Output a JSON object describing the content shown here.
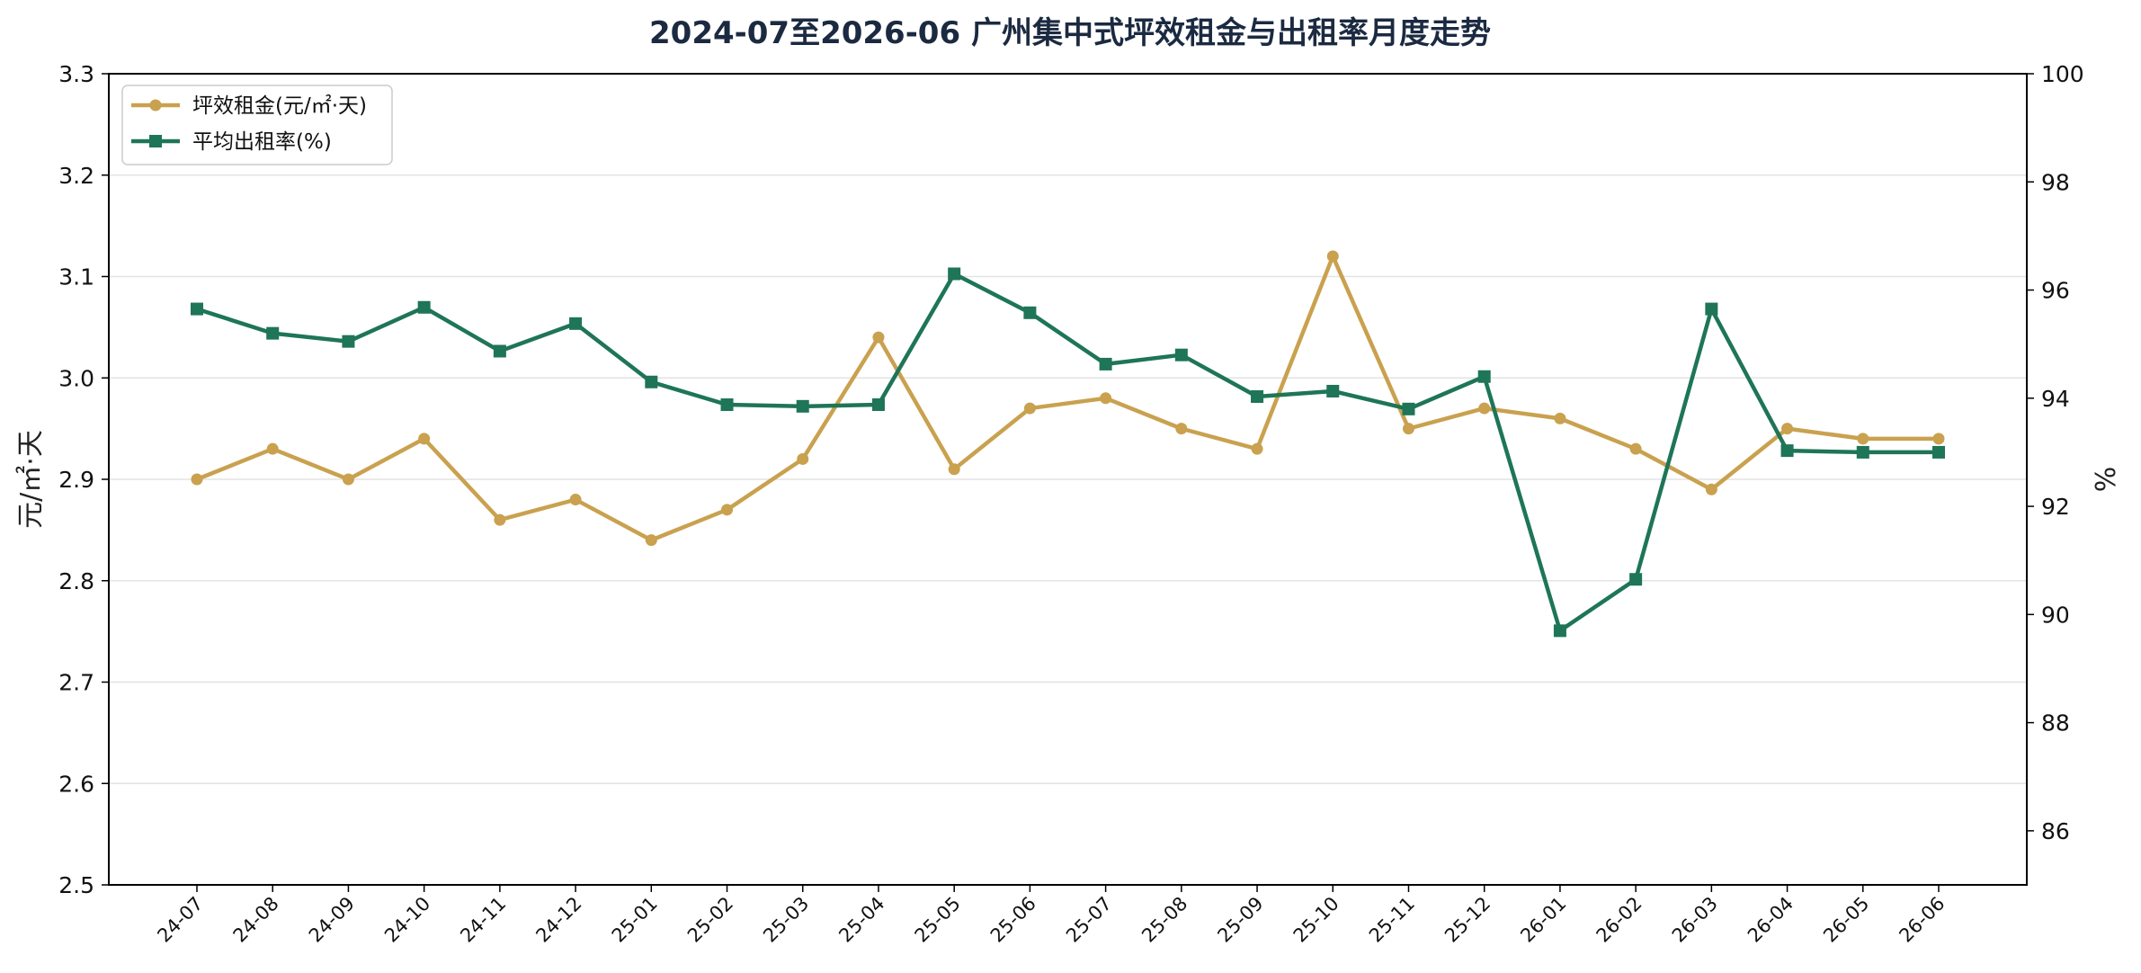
{
  "chart_data": {
    "type": "line",
    "title": "2024-07至2026-06 广州集中式坪效租金与出租率月度走势",
    "ylabel_left": "元/㎡·天",
    "ylabel_right": "%",
    "ylim_left": [
      2.5,
      3.3
    ],
    "ylim_right": [
      85,
      100
    ],
    "yticks_left": [
      "2.5",
      "2.6",
      "2.7",
      "2.8",
      "2.9",
      "3.0",
      "3.1",
      "3.2",
      "3.3"
    ],
    "yticks_right": [
      "86",
      "88",
      "90",
      "92",
      "94",
      "96",
      "98",
      "100"
    ],
    "grid": "horizontal",
    "legend_position": "top-left",
    "categories": [
      "24-07",
      "24-08",
      "24-09",
      "24-10",
      "24-11",
      "24-12",
      "25-01",
      "25-02",
      "25-03",
      "25-04",
      "25-05",
      "25-06",
      "25-07",
      "25-08",
      "25-09",
      "25-10",
      "25-11",
      "25-12",
      "26-01",
      "26-02",
      "26-03",
      "26-04",
      "26-05",
      "26-06"
    ],
    "series": [
      {
        "name": "坪效租金(元/㎡·天)",
        "axis": "left",
        "marker": "circle",
        "color": "#c9a14f",
        "values": [
          2.9,
          2.93,
          2.9,
          2.94,
          2.86,
          2.88,
          2.84,
          2.87,
          2.92,
          3.04,
          2.91,
          2.97,
          2.98,
          2.95,
          2.93,
          3.12,
          2.95,
          2.97,
          2.96,
          2.93,
          2.89,
          2.95,
          2.94,
          2.94
        ]
      },
      {
        "name": "平均出租率(%)",
        "axis": "right",
        "marker": "square",
        "color": "#1e7557",
        "values": [
          95.65,
          95.2,
          95.05,
          95.68,
          94.87,
          95.38,
          94.3,
          93.88,
          93.85,
          93.88,
          96.3,
          95.58,
          94.63,
          94.8,
          94.03,
          94.13,
          93.8,
          94.4,
          89.7,
          90.65,
          95.65,
          93.03,
          93.0,
          93.0
        ]
      }
    ]
  }
}
